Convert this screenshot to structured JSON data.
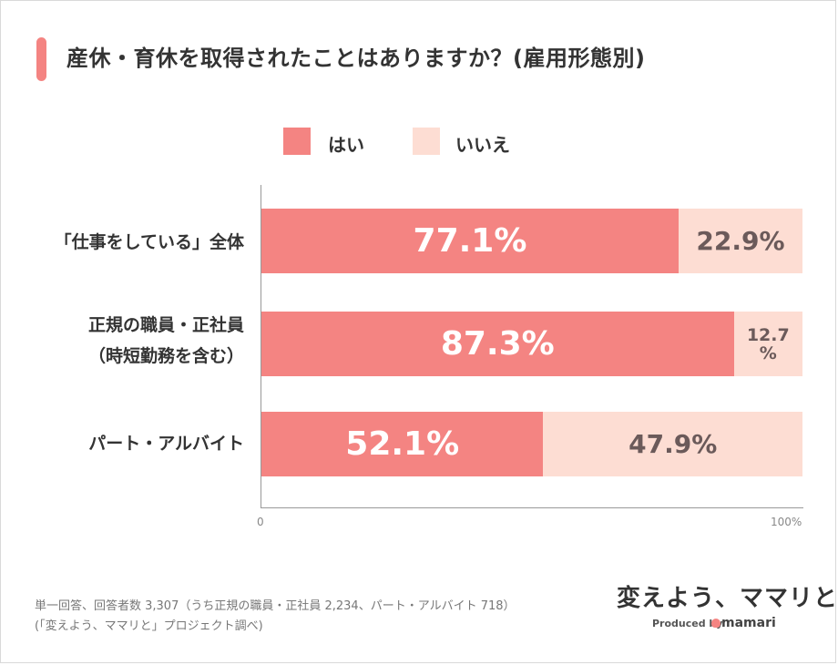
{
  "title": "産休・育休を取得されたことはありますか？(雇用形態別)",
  "colors": {
    "yes": "#f48482",
    "no": "#fdddd3",
    "accent": "#f48482"
  },
  "chart_data": {
    "type": "bar",
    "orientation": "horizontal",
    "stacked": true,
    "legend_position": "top",
    "categories": [
      "「仕事をしている」全体",
      "正規の職員・正社員\n（時短勤務を含む）",
      "パート・アルバイト"
    ],
    "series": [
      {
        "name": "はい",
        "values": [
          77.1,
          87.3,
          52.1
        ]
      },
      {
        "name": "いいえ",
        "values": [
          22.9,
          12.7,
          47.9
        ]
      }
    ],
    "value_labels": {
      "yes": [
        "77.1%",
        "87.3%",
        "52.1%"
      ],
      "no": [
        "22.9%",
        "12.7\n%",
        "47.9%"
      ]
    },
    "xlim": [
      0,
      100
    ],
    "ticks": [
      "0",
      "100%"
    ]
  },
  "category_labels": {
    "cat0": "「仕事をしている」全体",
    "cat1_line1": "正規の職員・正社員",
    "cat1_line2": "（時短勤務を含む）",
    "cat2": "パート・アルバイト"
  },
  "footnote": {
    "line1": "単一回答、回答者数 3,307（うち正規の職員・正社員 2,234、パート・アルバイト 718）",
    "line2": "(「変えよう、ママリと」プロジェクト調べ)"
  },
  "brand": {
    "slogan": "変えよう、ママリと",
    "produced_by": "Produced by",
    "name": "mamari"
  }
}
